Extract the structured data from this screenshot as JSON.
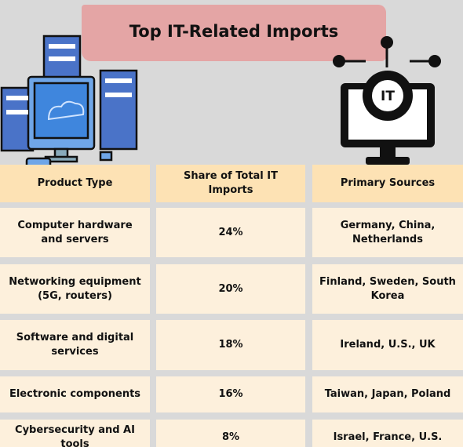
{
  "header": {
    "title": "Top IT-Related Imports"
  },
  "table": {
    "columns": [
      "Product Type",
      "Share of Total IT Imports",
      "Primary Sources"
    ],
    "rows": [
      [
        "Computer hardware and servers",
        "24%",
        "Germany, China, Netherlands"
      ],
      [
        "Networking equipment (5G, routers)",
        "20%",
        "Finland, Sweden, South Korea"
      ],
      [
        "Software and digital services",
        "18%",
        "Ireland, U.S., UK"
      ],
      [
        "Electronic components",
        "16%",
        "Taiwan, Japan, Poland"
      ],
      [
        "Cybersecurity and AI tools",
        "8%",
        "Israel, France, U.S."
      ]
    ]
  }
}
